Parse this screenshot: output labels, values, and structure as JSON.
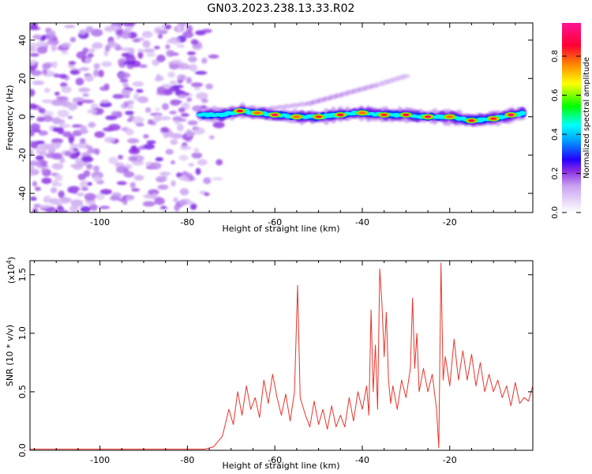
{
  "title": "GN03.2023.238.13.33.R02",
  "chart_data": [
    {
      "type": "heatmap",
      "xlabel": "Height of straight line (km)",
      "ylabel": "Frequency (Hz)",
      "xlim": [
        -116,
        -1
      ],
      "ylim": [
        -50,
        49
      ],
      "xticks": [
        -100,
        -80,
        -60,
        -40,
        -20
      ],
      "yticks": [
        -40,
        -20,
        0,
        20,
        40
      ],
      "colorbar": {
        "label": "Normalized spectral amplitude",
        "range": [
          0.0,
          0.97
        ],
        "ticks": [
          0.0,
          0.2,
          0.4,
          0.6,
          0.8
        ],
        "colormap": [
          "#e8d8f8",
          "#c9a2f0",
          "#8a2be2",
          "#2200ff",
          "#00a0ff",
          "#00ffff",
          "#00ff00",
          "#ffff00",
          "#ff8800",
          "#ff0033",
          "#ff1493"
        ]
      },
      "noise_region": {
        "x": [
          -116,
          -72
        ],
        "y": [
          -50,
          49
        ],
        "amplitude": [
          0.05,
          0.25
        ]
      },
      "ridge": [
        {
          "x": -77,
          "y": 1,
          "amp": 0.3
        },
        {
          "x": -72,
          "y": 1,
          "amp": 0.5
        },
        {
          "x": -68,
          "y": 3,
          "amp": 0.8
        },
        {
          "x": -64,
          "y": 2,
          "amp": 0.7
        },
        {
          "x": -60,
          "y": 1,
          "amp": 0.85
        },
        {
          "x": -55,
          "y": 0,
          "amp": 0.7
        },
        {
          "x": -50,
          "y": 0,
          "amp": 0.75
        },
        {
          "x": -45,
          "y": 1,
          "amp": 0.8
        },
        {
          "x": -40,
          "y": 2,
          "amp": 0.7
        },
        {
          "x": -35,
          "y": 1,
          "amp": 0.75
        },
        {
          "x": -30,
          "y": 1,
          "amp": 0.8
        },
        {
          "x": -25,
          "y": 0,
          "amp": 0.85
        },
        {
          "x": -20,
          "y": 0,
          "amp": 0.7
        },
        {
          "x": -15,
          "y": -2,
          "amp": 0.8
        },
        {
          "x": -10,
          "y": -1,
          "amp": 0.75
        },
        {
          "x": -6,
          "y": 1,
          "amp": 0.85
        },
        {
          "x": -3,
          "y": 2,
          "amp": 0.6
        }
      ],
      "faint_branch": [
        {
          "x": -62,
          "y": 4,
          "amp": 0.12
        },
        {
          "x": -52,
          "y": 7,
          "amp": 0.14
        },
        {
          "x": -44,
          "y": 12,
          "amp": 0.13
        },
        {
          "x": -36,
          "y": 17,
          "amp": 0.1
        },
        {
          "x": -29,
          "y": 22,
          "amp": 0.08
        }
      ]
    },
    {
      "type": "line",
      "xlabel": "Height of straight line (km)",
      "ylabel": "SNR (10 * v/v)",
      "multiplier_label": "(x10",
      "multiplier_exponent": "4",
      "multiplier_close": ")",
      "xlim": [
        -116,
        -1
      ],
      "ylim": [
        0,
        1.62
      ],
      "xticks": [
        -100,
        -80,
        -60,
        -40,
        -20
      ],
      "yticks": [
        0.0,
        0.5,
        1.0,
        1.5
      ],
      "series": [
        {
          "color": "#e8352b",
          "points": [
            [
              -116,
              0.01
            ],
            [
              -100,
              0.01
            ],
            [
              -85,
              0.01
            ],
            [
              -76,
              0.01
            ],
            [
              -74,
              0.03
            ],
            [
              -72,
              0.12
            ],
            [
              -70.5,
              0.35
            ],
            [
              -69.5,
              0.22
            ],
            [
              -68.5,
              0.5
            ],
            [
              -67.5,
              0.3
            ],
            [
              -66.5,
              0.55
            ],
            [
              -65.5,
              0.35
            ],
            [
              -64.5,
              0.45
            ],
            [
              -63.5,
              0.28
            ],
            [
              -62.5,
              0.6
            ],
            [
              -61.5,
              0.4
            ],
            [
              -60.5,
              0.65
            ],
            [
              -59.5,
              0.45
            ],
            [
              -58.5,
              0.3
            ],
            [
              -57.5,
              0.48
            ],
            [
              -56.5,
              0.25
            ],
            [
              -55.5,
              0.5
            ],
            [
              -54.8,
              1.41
            ],
            [
              -54.2,
              0.45
            ],
            [
              -53,
              0.3
            ],
            [
              -52,
              0.2
            ],
            [
              -51,
              0.42
            ],
            [
              -50,
              0.22
            ],
            [
              -49,
              0.35
            ],
            [
              -48,
              0.18
            ],
            [
              -47,
              0.38
            ],
            [
              -46,
              0.2
            ],
            [
              -45,
              0.3
            ],
            [
              -44,
              0.2
            ],
            [
              -43,
              0.45
            ],
            [
              -42,
              0.25
            ],
            [
              -41,
              0.5
            ],
            [
              -40,
              0.35
            ],
            [
              -39,
              0.55
            ],
            [
              -38.5,
              0.3
            ],
            [
              -38,
              1.2
            ],
            [
              -37.5,
              0.5
            ],
            [
              -37,
              0.9
            ],
            [
              -36.5,
              0.35
            ],
            [
              -36,
              1.55
            ],
            [
              -35.5,
              1.25
            ],
            [
              -35,
              0.8
            ],
            [
              -34.5,
              1.18
            ],
            [
              -34,
              0.6
            ],
            [
              -33.5,
              0.4
            ],
            [
              -33,
              0.55
            ],
            [
              -32,
              0.35
            ],
            [
              -31,
              0.6
            ],
            [
              -30,
              0.45
            ],
            [
              -29,
              0.7
            ],
            [
              -28.5,
              1.3
            ],
            [
              -28,
              0.7
            ],
            [
              -27.5,
              1.0
            ],
            [
              -27,
              0.5
            ],
            [
              -26,
              0.7
            ],
            [
              -25,
              0.5
            ],
            [
              -24,
              0.65
            ],
            [
              -23,
              0.35
            ],
            [
              -22.5,
              0.02
            ],
            [
              -22,
              1.6
            ],
            [
              -21.5,
              0.6
            ],
            [
              -21,
              0.8
            ],
            [
              -20,
              0.55
            ],
            [
              -19,
              0.95
            ],
            [
              -18,
              0.6
            ],
            [
              -17,
              0.85
            ],
            [
              -16,
              0.6
            ],
            [
              -15,
              0.82
            ],
            [
              -14,
              0.55
            ],
            [
              -13,
              0.75
            ],
            [
              -12,
              0.5
            ],
            [
              -11,
              0.65
            ],
            [
              -10,
              0.5
            ],
            [
              -9,
              0.6
            ],
            [
              -8,
              0.45
            ],
            [
              -7,
              0.55
            ],
            [
              -6,
              0.38
            ],
            [
              -5,
              0.58
            ],
            [
              -4,
              0.4
            ],
            [
              -3,
              0.45
            ],
            [
              -2,
              0.42
            ],
            [
              -1,
              0.55
            ]
          ]
        }
      ]
    }
  ]
}
